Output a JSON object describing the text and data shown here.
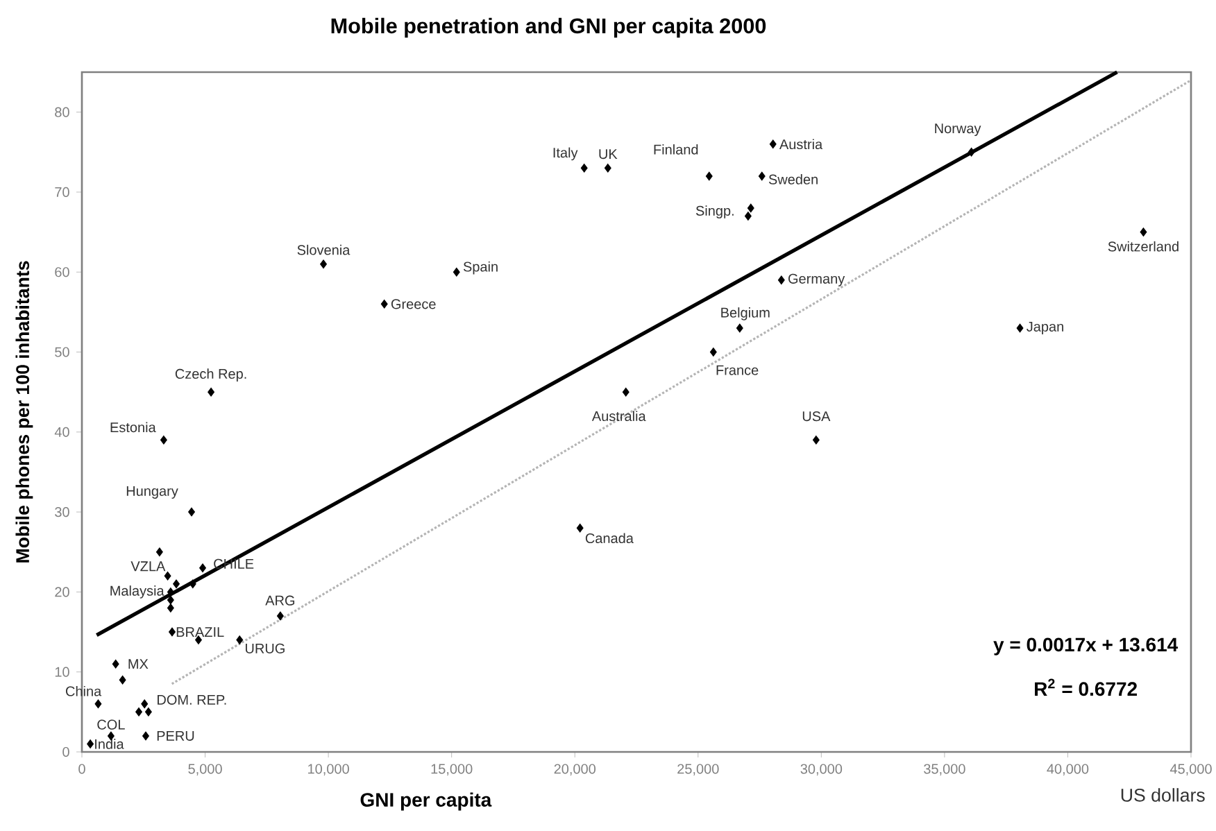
{
  "chart_data": {
    "type": "scatter",
    "title": "Mobile penetration and GNI per capita 2000",
    "xlabel": "GNI per capita",
    "ylabel": "Mobile phones per 100 inhabitants",
    "xlim": [
      0,
      45000
    ],
    "ylim": [
      0,
      85
    ],
    "xticks": [
      0,
      {
        "value": 5000,
        "label": "5,000"
      },
      {
        "value": 10000,
        "label": "10,000"
      },
      {
        "value": 15000,
        "label": "15,000"
      },
      {
        "value": 20000,
        "label": "20,000"
      },
      {
        "value": 25000,
        "label": "25,000"
      },
      {
        "value": 30000,
        "label": "30,000"
      },
      {
        "value": 35000,
        "label": "35,000"
      },
      {
        "value": 40000,
        "label": "40,000"
      },
      {
        "value": 45000,
        "label": "45,000"
      }
    ],
    "yticks": [
      0,
      10,
      20,
      30,
      40,
      50,
      60,
      70,
      80
    ],
    "series": [
      {
        "marker": "diamond",
        "color": "#000000",
        "x": [
          20380,
          21340,
          25450,
          28040,
          27590,
          27140,
          27030,
          36090,
          9800,
          15200,
          12270,
          28380,
          26690,
          43070,
          38060,
          25620,
          5240,
          3320,
          22070,
          29790,
          4450,
          20210,
          3150,
          3480,
          3830,
          4500,
          4900,
          3600,
          3600,
          3600,
          8050,
          3660,
          4730,
          6400,
          1370,
          1650,
          660,
          2540,
          2310,
          2700,
          1180,
          2590,
          340
        ],
        "values": [
          73,
          73,
          72,
          76,
          72,
          68,
          67,
          75,
          61,
          60,
          56,
          59,
          53,
          65,
          53,
          50,
          45,
          39,
          45,
          39,
          30,
          28,
          25,
          22,
          21,
          21,
          23,
          20,
          19,
          18,
          17,
          15,
          14,
          14,
          11,
          9,
          6,
          6,
          5,
          5,
          2,
          2,
          1
        ]
      },
      {
        "type": "line",
        "color": "#000000",
        "line_style": "solid",
        "x": [
          600,
          42000
        ],
        "values": [
          14.6,
          85.0
        ]
      },
      {
        "type": "line",
        "color": "#b4b4b4",
        "line_style": "dotted",
        "x": [
          3650,
          45000
        ],
        "values": [
          8.5,
          84
        ]
      }
    ],
    "annotations": [
      {
        "text": "Italy",
        "x": 20380,
        "y": 73
      },
      {
        "text": "UK",
        "x": 21340,
        "y": 73
      },
      {
        "text": "Finland",
        "x": 25450,
        "y": 72
      },
      {
        "text": "Austria",
        "x": 28040,
        "y": 76
      },
      {
        "text": "Sweden",
        "x": 27590,
        "y": 72
      },
      {
        "text": "Singp.",
        "x": 27030,
        "y": 67
      },
      {
        "text": "Norway",
        "x": 36090,
        "y": 75
      },
      {
        "text": "Slovenia",
        "x": 9800,
        "y": 61
      },
      {
        "text": "Spain",
        "x": 15200,
        "y": 60
      },
      {
        "text": "Greece",
        "x": 12270,
        "y": 56
      },
      {
        "text": "Germany",
        "x": 28380,
        "y": 59
      },
      {
        "text": "Belgium",
        "x": 26690,
        "y": 53
      },
      {
        "text": "Switzerland",
        "x": 43070,
        "y": 65
      },
      {
        "text": "Japan",
        "x": 38060,
        "y": 53
      },
      {
        "text": "France",
        "x": 25620,
        "y": 50
      },
      {
        "text": "Czech Rep.",
        "x": 5240,
        "y": 45
      },
      {
        "text": "Estonia",
        "x": 3320,
        "y": 39
      },
      {
        "text": "Australia",
        "x": 22070,
        "y": 45
      },
      {
        "text": "USA",
        "x": 29790,
        "y": 39
      },
      {
        "text": "Hungary",
        "x": 4450,
        "y": 30
      },
      {
        "text": "Canada",
        "x": 20210,
        "y": 28
      },
      {
        "text": "VZLA",
        "x": 3480,
        "y": 22
      },
      {
        "text": "CHILE",
        "x": 4900,
        "y": 23
      },
      {
        "text": "Malaysia",
        "x": 3600,
        "y": 20
      },
      {
        "text": "ARG",
        "x": 8050,
        "y": 17
      },
      {
        "text": "BRAZIL",
        "x": 3660,
        "y": 15
      },
      {
        "text": "URUG",
        "x": 6400,
        "y": 14
      },
      {
        "text": "MX",
        "x": 1370,
        "y": 11
      },
      {
        "text": "China",
        "x": 660,
        "y": 6
      },
      {
        "text": "DOM. REP.",
        "x": 2540,
        "y": 6
      },
      {
        "text": "COL",
        "x": 1180,
        "y": 2
      },
      {
        "text": "PERU",
        "x": 2590,
        "y": 2
      },
      {
        "text": "India",
        "x": 340,
        "y": 1
      },
      "y = 0.0017x + 13.614",
      "R$^{2}$ = 0.6772",
      "US dollars"
    ]
  }
}
